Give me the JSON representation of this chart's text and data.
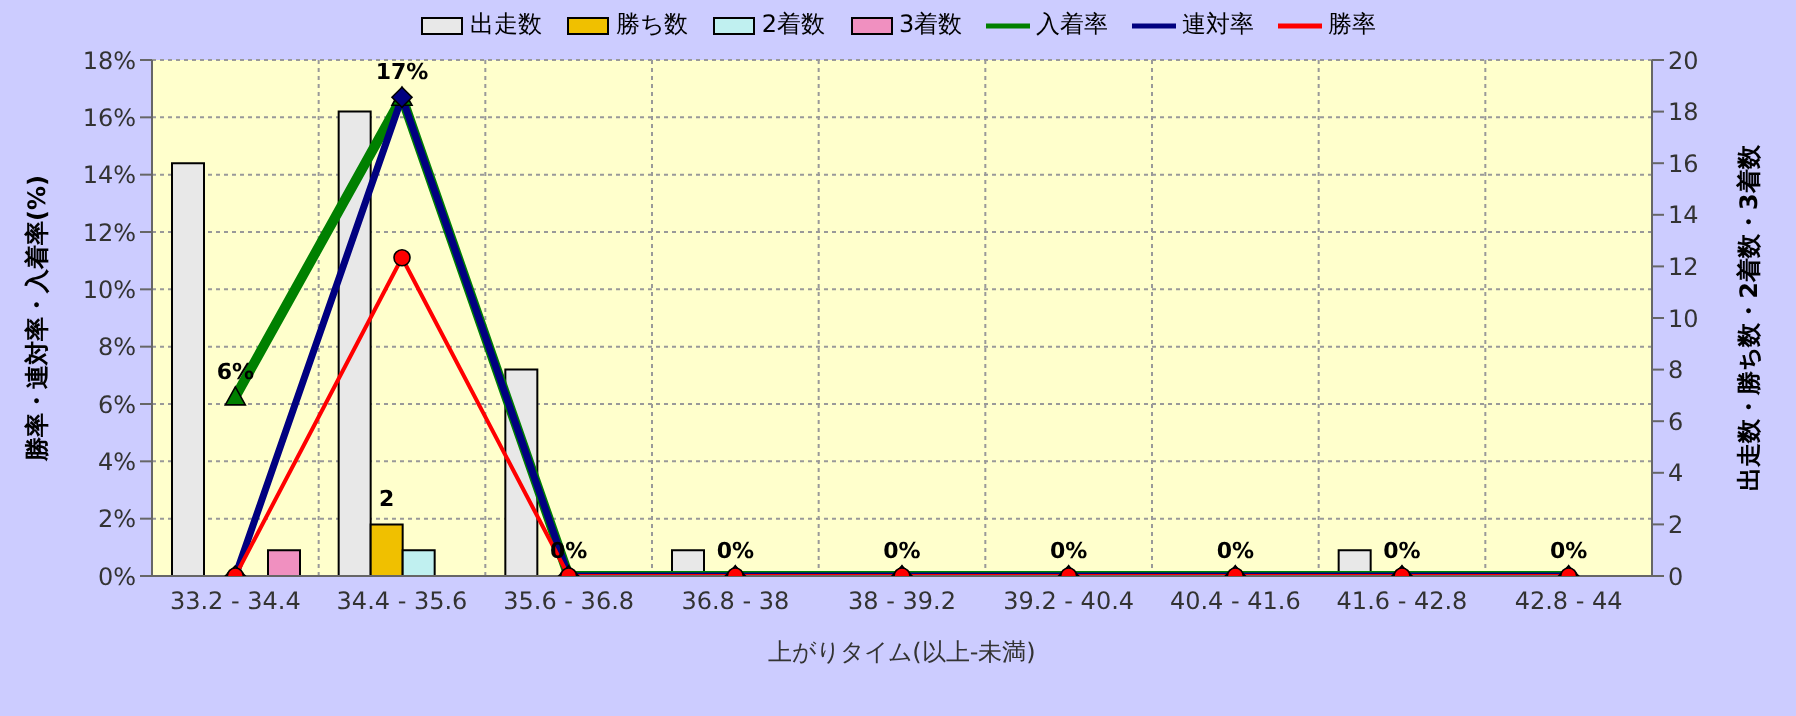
{
  "chart_data": {
    "type": "bar",
    "xlabel": "上がりタイム(以上-未満)",
    "ylabel": "勝率・連対率・入着率(%)",
    "y2label": "出走数・勝ち数・2着数・3着数",
    "categories": [
      "33.2 - 34.4",
      "34.4 - 35.6",
      "35.6 - 36.8",
      "36.8 - 38",
      "38 - 39.2",
      "39.2 - 40.4",
      "40.4 - 41.6",
      "41.6 - 42.8",
      "42.8 - 44"
    ],
    "series": [
      {
        "name": "出走数",
        "axis": "y2",
        "color": "#e8e8e8",
        "values": [
          16,
          18,
          8,
          1,
          0,
          0,
          0,
          1,
          0
        ]
      },
      {
        "name": "勝ち数",
        "axis": "y2",
        "color": "#f0c000",
        "values": [
          0,
          2,
          0,
          0,
          0,
          0,
          0,
          0,
          0
        ],
        "value_labels": [
          null,
          "2",
          null,
          null,
          null,
          null,
          null,
          null,
          null
        ]
      },
      {
        "name": "2着数",
        "axis": "y2",
        "color": "#c0f0f0",
        "values": [
          0,
          1,
          0,
          0,
          0,
          0,
          0,
          0,
          0
        ]
      },
      {
        "name": "3着数",
        "axis": "y2",
        "color": "#f090c0",
        "values": [
          1,
          0,
          0,
          0,
          0,
          0,
          0,
          0,
          0
        ]
      },
      {
        "name": "入着率",
        "type": "line",
        "color": "#008000",
        "marker": "triangle",
        "values": [
          6.25,
          16.7,
          0,
          0,
          0,
          0,
          0,
          0,
          0
        ],
        "value_labels": [
          "6%",
          "17%",
          "0%",
          "0%",
          "0%",
          "0%",
          "0%",
          "0%",
          "0%"
        ]
      },
      {
        "name": "連対率",
        "type": "line",
        "color": "#000080",
        "marker": "diamond",
        "values": [
          0,
          16.7,
          0,
          0,
          0,
          0,
          0,
          0,
          0
        ]
      },
      {
        "name": "勝率",
        "type": "line",
        "color": "#ff0000",
        "marker": "circle",
        "values": [
          0,
          11.1,
          0,
          0,
          0,
          0,
          0,
          0,
          0
        ]
      }
    ],
    "ylim": [
      0,
      18
    ],
    "yticks": [
      {
        "value": 0,
        "label": "0%"
      },
      {
        "value": 2,
        "label": "2%"
      },
      {
        "value": 4,
        "label": "4%"
      },
      {
        "value": 6,
        "label": "6%"
      },
      {
        "value": 8,
        "label": "8%"
      },
      {
        "value": 10,
        "label": "10%"
      },
      {
        "value": 12,
        "label": "12%"
      },
      {
        "value": 14,
        "label": "14%"
      },
      {
        "value": 16,
        "label": "16%"
      },
      {
        "value": 18,
        "label": "18%"
      }
    ],
    "y2lim": [
      0,
      20
    ],
    "y2ticks": [
      0,
      2,
      4,
      6,
      8,
      10,
      12,
      14,
      16,
      18,
      20
    ],
    "grid": true,
    "legend": "top",
    "line_style": "solid"
  }
}
